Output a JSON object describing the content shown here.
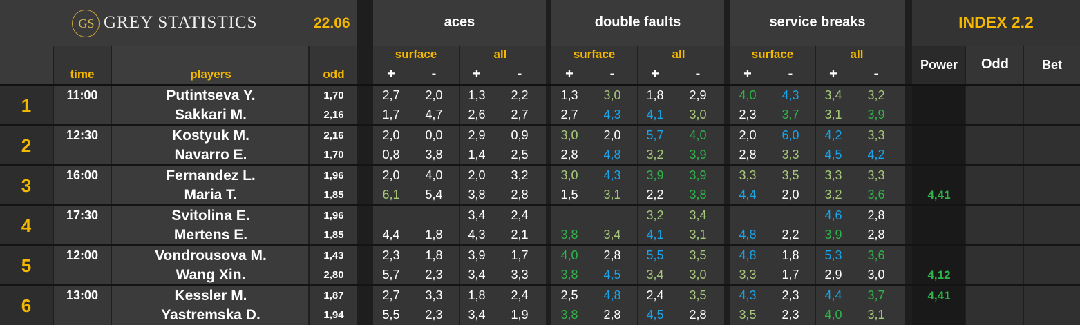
{
  "header": {
    "logo_mark": "GS",
    "brand": "GREY STATISTICS",
    "date": "22.06",
    "groups": [
      "aces",
      "double faults",
      "service breaks"
    ],
    "index": "INDEX 2.2",
    "sub": [
      "surface",
      "all"
    ],
    "plus": "+",
    "minus": "-",
    "col_time": "time",
    "col_players": "players",
    "col_odd": "odd",
    "col_power": "Power",
    "col_odd2": "Odd",
    "col_bet": "Bet"
  },
  "colors": {
    "orange": "#f5b800",
    "lightgreen": "#a5c87a",
    "darkgreen": "#2fb34a",
    "blue": "#1aa3e8"
  },
  "matches": [
    {
      "no": "1",
      "time": "11:00",
      "p1": {
        "name": "Putintseva Y.",
        "odd": "1,70",
        "vals": [
          "2,7",
          "2,0",
          "1,3",
          "2,2",
          "1,3",
          "3,0",
          "1,8",
          "2,9",
          "4,0",
          "4,3",
          "3,4",
          "3,2"
        ],
        "cols": [
          "w",
          "w",
          "w",
          "w",
          "w",
          "lg",
          "w",
          "w",
          "dg",
          "bl",
          "lg",
          "lg"
        ],
        "power": ""
      },
      "p2": {
        "name": "Sakkari M.",
        "odd": "2,16",
        "vals": [
          "1,7",
          "4,7",
          "2,6",
          "2,7",
          "2,7",
          "4,3",
          "4,1",
          "3,0",
          "2,3",
          "3,7",
          "3,1",
          "3,9"
        ],
        "cols": [
          "w",
          "w",
          "w",
          "w",
          "w",
          "bl",
          "bl",
          "lg",
          "w",
          "dg",
          "lg",
          "dg"
        ],
        "power": ""
      }
    },
    {
      "no": "2",
      "time": "12:30",
      "p1": {
        "name": "Kostyuk M.",
        "odd": "2,16",
        "vals": [
          "2,0",
          "0,0",
          "2,9",
          "0,9",
          "3,0",
          "2,0",
          "5,7",
          "4,0",
          "2,0",
          "6,0",
          "4,2",
          "3,3"
        ],
        "cols": [
          "w",
          "w",
          "w",
          "w",
          "lg",
          "w",
          "bl",
          "dg",
          "w",
          "bl",
          "bl",
          "lg"
        ],
        "power": ""
      },
      "p2": {
        "name": "Navarro E.",
        "odd": "1,70",
        "vals": [
          "0,8",
          "3,8",
          "1,4",
          "2,5",
          "2,8",
          "4,8",
          "3,2",
          "3,9",
          "2,8",
          "3,3",
          "4,5",
          "4,2"
        ],
        "cols": [
          "w",
          "w",
          "w",
          "w",
          "w",
          "bl",
          "lg",
          "dg",
          "w",
          "lg",
          "bl",
          "bl"
        ],
        "power": ""
      }
    },
    {
      "no": "3",
      "time": "16:00",
      "p1": {
        "name": "Fernandez L.",
        "odd": "1,96",
        "vals": [
          "2,0",
          "4,0",
          "2,0",
          "3,2",
          "3,0",
          "4,3",
          "3,9",
          "3,9",
          "3,3",
          "3,5",
          "3,3",
          "3,3"
        ],
        "cols": [
          "w",
          "w",
          "w",
          "w",
          "lg",
          "bl",
          "dg",
          "dg",
          "lg",
          "lg",
          "lg",
          "lg"
        ],
        "power": ""
      },
      "p2": {
        "name": "Maria T.",
        "odd": "1,85",
        "vals": [
          "6,1",
          "5,4",
          "3,8",
          "2,8",
          "1,5",
          "3,1",
          "2,2",
          "3,8",
          "4,4",
          "2,0",
          "3,2",
          "3,6"
        ],
        "cols": [
          "lg",
          "w",
          "w",
          "w",
          "w",
          "lg",
          "w",
          "dg",
          "bl",
          "w",
          "lg",
          "dg"
        ],
        "power": "4,41"
      }
    },
    {
      "no": "4",
      "time": "17:30",
      "p1": {
        "name": "Svitolina E.",
        "odd": "1,96",
        "vals": [
          "",
          "",
          "3,4",
          "2,4",
          "",
          "",
          "3,2",
          "3,4",
          "",
          "",
          "4,6",
          "2,8"
        ],
        "cols": [
          "w",
          "w",
          "w",
          "w",
          "w",
          "w",
          "lg",
          "lg",
          "w",
          "w",
          "bl",
          "w"
        ],
        "power": ""
      },
      "p2": {
        "name": "Mertens E.",
        "odd": "1,85",
        "vals": [
          "4,4",
          "1,8",
          "4,3",
          "2,1",
          "3,8",
          "3,4",
          "4,1",
          "3,1",
          "4,8",
          "2,2",
          "3,9",
          "2,8"
        ],
        "cols": [
          "w",
          "w",
          "w",
          "w",
          "dg",
          "lg",
          "bl",
          "lg",
          "bl",
          "w",
          "dg",
          "w"
        ],
        "power": ""
      }
    },
    {
      "no": "5",
      "time": "12:00",
      "p1": {
        "name": "Vondrousova M.",
        "odd": "1,43",
        "vals": [
          "2,3",
          "1,8",
          "3,9",
          "1,7",
          "4,0",
          "2,8",
          "5,5",
          "3,5",
          "4,8",
          "1,8",
          "5,3",
          "3,6"
        ],
        "cols": [
          "w",
          "w",
          "w",
          "w",
          "dg",
          "w",
          "bl",
          "lg",
          "bl",
          "w",
          "bl",
          "dg"
        ],
        "power": ""
      },
      "p2": {
        "name": "Wang Xin.",
        "odd": "2,80",
        "vals": [
          "5,7",
          "2,3",
          "3,4",
          "3,3",
          "3,8",
          "4,5",
          "3,4",
          "3,0",
          "3,3",
          "1,7",
          "2,9",
          "3,0"
        ],
        "cols": [
          "w",
          "w",
          "w",
          "w",
          "dg",
          "bl",
          "lg",
          "lg",
          "lg",
          "w",
          "w",
          "w"
        ],
        "power": "4,12"
      }
    },
    {
      "no": "6",
      "time": "13:00",
      "p1": {
        "name": "Kessler M.",
        "odd": "1,87",
        "vals": [
          "2,7",
          "3,3",
          "1,8",
          "2,4",
          "2,5",
          "4,8",
          "2,4",
          "3,5",
          "4,3",
          "2,3",
          "4,4",
          "3,7"
        ],
        "cols": [
          "w",
          "w",
          "w",
          "w",
          "w",
          "bl",
          "w",
          "lg",
          "bl",
          "w",
          "bl",
          "dg"
        ],
        "power": "4,41"
      },
      "p2": {
        "name": "Yastremska D.",
        "odd": "1,94",
        "vals": [
          "5,5",
          "2,3",
          "3,4",
          "1,9",
          "3,8",
          "2,8",
          "4,5",
          "2,8",
          "3,5",
          "2,3",
          "4,0",
          "3,1"
        ],
        "cols": [
          "w",
          "w",
          "w",
          "w",
          "dg",
          "w",
          "bl",
          "w",
          "lg",
          "w",
          "dg",
          "lg"
        ],
        "power": ""
      }
    }
  ]
}
